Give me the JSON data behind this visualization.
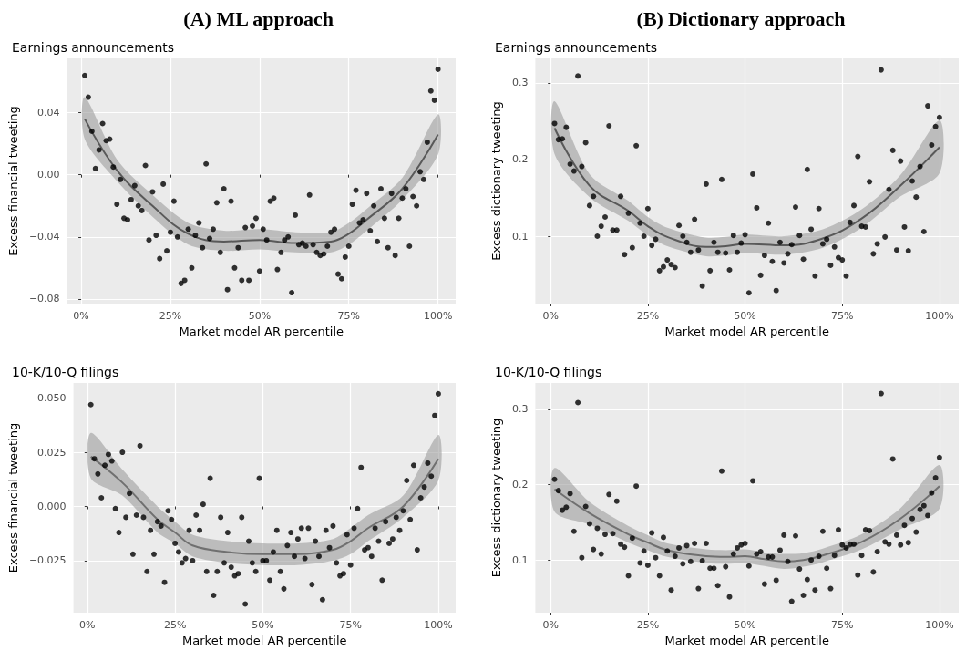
{
  "chart_data": [
    {
      "type": "scatter",
      "title": "Earnings announcements",
      "annotations": [
        "(A) ML approach"
      ],
      "xlabel": "Market model AR percentile",
      "ylabel": "Excess financial tweeting",
      "grid": true,
      "xlim": [
        -3.95,
        104.95
      ],
      "xticks": [
        {
          "value": 0,
          "label": "0%"
        },
        {
          "value": 25,
          "label": "25%"
        },
        {
          "value": 50,
          "label": "50%"
        },
        {
          "value": 75,
          "label": "75%"
        },
        {
          "value": 100,
          "label": "100%"
        }
      ],
      "ylim": [
        -0.083,
        0.075
      ],
      "yticks": [
        {
          "value": -0.08,
          "label": "−0.08"
        },
        {
          "value": -0.04,
          "label": "−0.04"
        },
        {
          "value": 0,
          "label": "0.00"
        },
        {
          "value": 0.04,
          "label": "0.04"
        }
      ],
      "x": [
        1,
        2,
        3,
        4,
        5,
        6,
        7,
        8,
        9,
        10,
        11,
        12,
        13,
        14,
        15,
        16,
        17,
        18,
        19,
        20,
        21,
        22,
        23,
        24,
        25,
        26,
        27,
        28,
        29,
        30,
        31,
        32,
        33,
        34,
        35,
        36,
        37,
        38,
        39,
        40,
        41,
        42,
        43,
        44,
        45,
        46,
        47,
        48,
        49,
        50,
        51,
        52,
        53,
        54,
        55,
        56,
        57,
        58,
        59,
        60,
        61,
        62,
        63,
        64,
        65,
        66,
        67,
        68,
        69,
        70,
        71,
        72,
        73,
        74,
        75,
        76,
        77,
        78,
        79,
        80,
        81,
        82,
        83,
        84,
        85,
        86,
        87,
        88,
        89,
        90,
        91,
        92,
        93,
        94,
        95,
        96,
        97,
        98,
        99,
        100
      ],
      "series": [
        {
          "color": "#000000",
          "marker": "circle",
          "values": [
            0.064,
            0.05,
            0.028,
            0.004,
            0.016,
            0.033,
            0.022,
            0.023,
            0.005,
            -0.019,
            -0.003,
            -0.028,
            -0.029,
            -0.016,
            -0.007,
            -0.02,
            -0.023,
            0.006,
            -0.042,
            -0.011,
            -0.039,
            -0.054,
            -0.006,
            -0.049,
            -0.037,
            -0.017,
            -0.04,
            -0.07,
            -0.068,
            -0.035,
            -0.06,
            -0.039,
            -0.031,
            -0.047,
            0.007,
            -0.041,
            -0.035,
            -0.018,
            -0.05,
            -0.009,
            -0.074,
            -0.017,
            -0.06,
            -0.047,
            -0.068,
            -0.034,
            -0.068,
            -0.033,
            -0.028,
            -0.062,
            -0.035,
            -0.042,
            -0.017,
            -0.015,
            -0.061,
            -0.05,
            -0.042,
            -0.04,
            -0.076,
            -0.026,
            -0.045,
            -0.044,
            -0.046,
            -0.013,
            -0.045,
            -0.05,
            -0.052,
            -0.051,
            -0.046,
            -0.037,
            -0.035,
            -0.064,
            -0.067,
            -0.053,
            -0.046,
            -0.019,
            -0.01,
            -0.031,
            -0.029,
            -0.012,
            -0.036,
            -0.02,
            -0.043,
            -0.009,
            -0.028,
            -0.047,
            -0.012,
            -0.052,
            -0.028,
            -0.015,
            -0.009,
            -0.046,
            -0.014,
            -0.02,
            0.002,
            -0.003,
            0.021,
            0.054,
            0.048,
            0.068
          ]
        },
        {
          "type": "line",
          "color": "#595959",
          "marker": "none",
          "x": [
            1,
            10,
            20,
            30,
            40,
            50,
            60,
            70,
            75,
            80,
            90,
            100
          ],
          "values": [
            0.036,
            0.003,
            -0.02,
            -0.038,
            -0.043,
            -0.042,
            -0.044,
            -0.043,
            -0.038,
            -0.029,
            -0.009,
            0.026
          ],
          "lower": [
            0.023,
            -0.004,
            -0.027,
            -0.045,
            -0.049,
            -0.048,
            -0.05,
            -0.05,
            -0.045,
            -0.036,
            -0.016,
            0.013
          ],
          "upper": [
            0.05,
            0.01,
            -0.013,
            -0.031,
            -0.036,
            -0.035,
            -0.037,
            -0.037,
            -0.031,
            -0.022,
            -0.002,
            0.039
          ]
        }
      ]
    },
    {
      "type": "scatter",
      "title": "Earnings announcements",
      "annotations": [
        "(B) Dictionary approach"
      ],
      "xlabel": "Market model AR percentile",
      "ylabel": "Excess dictionary tweeting",
      "grid": true,
      "xlim": [
        -3.95,
        104.95
      ],
      "xticks": [
        {
          "value": 0,
          "label": "0%"
        },
        {
          "value": 25,
          "label": "25%"
        },
        {
          "value": 50,
          "label": "50%"
        },
        {
          "value": 75,
          "label": "75%"
        },
        {
          "value": 100,
          "label": "100%"
        }
      ],
      "ylim": [
        0.012,
        0.332
      ],
      "yticks": [
        0.1,
        0.2,
        0.3
      ],
      "x": [
        1,
        2,
        3,
        4,
        5,
        6,
        7,
        8,
        9,
        10,
        11,
        12,
        13,
        14,
        15,
        16,
        17,
        18,
        19,
        20,
        21,
        22,
        23,
        24,
        25,
        26,
        27,
        28,
        29,
        30,
        31,
        32,
        33,
        34,
        35,
        36,
        37,
        38,
        39,
        40,
        41,
        42,
        43,
        44,
        45,
        46,
        47,
        48,
        49,
        50,
        51,
        52,
        53,
        54,
        55,
        56,
        57,
        58,
        59,
        60,
        61,
        62,
        63,
        64,
        65,
        66,
        67,
        68,
        69,
        70,
        71,
        72,
        73,
        74,
        75,
        76,
        77,
        78,
        79,
        80,
        81,
        82,
        83,
        84,
        85,
        86,
        87,
        88,
        89,
        90,
        91,
        92,
        93,
        94,
        95,
        96,
        97,
        98,
        99,
        100
      ],
      "series": [
        {
          "color": "#000000",
          "marker": "circle",
          "values": [
            0.247,
            0.226,
            0.227,
            0.242,
            0.194,
            0.185,
            0.309,
            0.191,
            0.222,
            0.14,
            0.152,
            0.1,
            0.113,
            0.125,
            0.244,
            0.108,
            0.108,
            0.152,
            0.076,
            0.13,
            0.085,
            0.218,
            0.117,
            0.1,
            0.136,
            0.088,
            0.096,
            0.055,
            0.06,
            0.069,
            0.063,
            0.059,
            0.114,
            0.1,
            0.092,
            0.079,
            0.122,
            0.082,
            0.035,
            0.168,
            0.055,
            0.092,
            0.079,
            0.174,
            0.078,
            0.056,
            0.101,
            0.079,
            0.091,
            0.102,
            0.026,
            0.181,
            0.137,
            0.049,
            0.075,
            0.117,
            0.067,
            0.029,
            0.092,
            0.065,
            0.077,
            0.089,
            0.138,
            0.101,
            0.07,
            0.187,
            0.109,
            0.048,
            0.136,
            0.09,
            0.096,
            0.062,
            0.086,
            0.072,
            0.069,
            0.048,
            0.118,
            0.14,
            0.204,
            0.113,
            0.112,
            0.171,
            0.077,
            0.09,
            0.317,
            0.099,
            0.161,
            0.212,
            0.082,
            0.198,
            0.112,
            0.081,
            0.172,
            0.151,
            0.191,
            0.106,
            0.27,
            0.219,
            0.243,
            0.255
          ]
        },
        {
          "type": "line",
          "color": "#595959",
          "marker": "none",
          "x": [
            1,
            10,
            20,
            25,
            30,
            40,
            45,
            50,
            60,
            70,
            80,
            90,
            100
          ],
          "values": [
            0.241,
            0.166,
            0.133,
            0.113,
            0.099,
            0.086,
            0.087,
            0.09,
            0.088,
            0.097,
            0.123,
            0.166,
            0.216
          ],
          "lower": [
            0.207,
            0.151,
            0.12,
            0.101,
            0.087,
            0.074,
            0.075,
            0.078,
            0.076,
            0.085,
            0.111,
            0.152,
            0.182
          ],
          "upper": [
            0.276,
            0.181,
            0.146,
            0.125,
            0.111,
            0.098,
            0.099,
            0.102,
            0.1,
            0.109,
            0.135,
            0.18,
            0.251
          ]
        }
      ]
    },
    {
      "type": "scatter",
      "title": "10-K/10-Q filings",
      "xlabel": "Market model AR percentile",
      "ylabel": "Excess financial tweeting",
      "grid": true,
      "xlim": [
        -3.95,
        104.95
      ],
      "xticks": [
        {
          "value": 0,
          "label": "0%"
        },
        {
          "value": 25,
          "label": "25%"
        },
        {
          "value": 50,
          "label": "50%"
        },
        {
          "value": 75,
          "label": "75%"
        },
        {
          "value": 100,
          "label": "100%"
        }
      ],
      "ylim": [
        -0.049,
        0.057
      ],
      "yticks": [
        {
          "value": -0.025,
          "label": "−0.025"
        },
        {
          "value": 0,
          "label": "0.000"
        },
        {
          "value": 0.025,
          "label": "0.025"
        },
        {
          "value": 0.05,
          "label": "0.050"
        }
      ],
      "x": [
        1,
        2,
        3,
        4,
        5,
        6,
        7,
        8,
        9,
        10,
        11,
        12,
        13,
        14,
        15,
        16,
        17,
        18,
        19,
        20,
        21,
        22,
        23,
        24,
        25,
        26,
        27,
        28,
        29,
        30,
        31,
        32,
        33,
        34,
        35,
        36,
        37,
        38,
        39,
        40,
        41,
        42,
        43,
        44,
        45,
        46,
        47,
        48,
        49,
        50,
        51,
        52,
        53,
        54,
        55,
        56,
        57,
        58,
        59,
        60,
        61,
        62,
        63,
        64,
        65,
        66,
        67,
        68,
        69,
        70,
        71,
        72,
        73,
        74,
        75,
        76,
        77,
        78,
        79,
        80,
        81,
        82,
        83,
        84,
        85,
        86,
        87,
        88,
        89,
        90,
        91,
        92,
        93,
        94,
        95,
        96,
        97,
        98,
        99,
        100
      ],
      "series": [
        {
          "color": "#000000",
          "marker": "circle",
          "values": [
            0.047,
            0.022,
            0.015,
            0.004,
            0.019,
            0.024,
            0.021,
            -0.001,
            -0.012,
            0.025,
            -0.005,
            0.006,
            -0.022,
            -0.004,
            0.028,
            -0.005,
            -0.03,
            -0.011,
            -0.022,
            -0.007,
            -0.009,
            -0.035,
            -0.002,
            -0.006,
            -0.017,
            -0.021,
            -0.026,
            -0.024,
            -0.011,
            -0.025,
            -0.004,
            -0.011,
            0.001,
            -0.03,
            0.013,
            -0.041,
            -0.03,
            -0.005,
            -0.026,
            -0.012,
            -0.028,
            -0.032,
            -0.031,
            -0.005,
            -0.045,
            -0.016,
            -0.026,
            -0.03,
            0.013,
            -0.025,
            -0.025,
            -0.034,
            -0.021,
            -0.011,
            -0.03,
            -0.038,
            -0.018,
            -0.012,
            -0.023,
            -0.015,
            -0.01,
            -0.024,
            -0.01,
            -0.036,
            -0.016,
            -0.023,
            -0.043,
            -0.011,
            -0.019,
            -0.009,
            -0.026,
            -0.032,
            -0.031,
            -0.013,
            -0.027,
            -0.01,
            -0.001,
            0.018,
            -0.02,
            -0.019,
            -0.023,
            -0.01,
            -0.016,
            -0.034,
            -0.007,
            -0.017,
            -0.015,
            -0.005,
            -0.011,
            -0.002,
            0.012,
            -0.006,
            0.019,
            -0.02,
            0.004,
            0.009,
            0.02,
            0.014,
            0.042,
            0.052
          ]
        },
        {
          "type": "line",
          "color": "#707070",
          "marker": "none",
          "x": [
            1,
            10,
            20,
            25,
            30,
            40,
            50,
            60,
            70,
            75,
            80,
            90,
            100
          ],
          "values": [
            0.023,
            0.011,
            -0.006,
            -0.012,
            -0.018,
            -0.021,
            -0.022,
            -0.022,
            -0.02,
            -0.016,
            -0.01,
            0.0,
            0.022
          ],
          "lower": [
            0.013,
            0.005,
            -0.012,
            -0.017,
            -0.023,
            -0.026,
            -0.027,
            -0.027,
            -0.025,
            -0.022,
            -0.016,
            -0.005,
            0.012
          ],
          "upper": [
            0.034,
            0.017,
            0.0,
            -0.007,
            -0.013,
            -0.016,
            -0.017,
            -0.017,
            -0.015,
            -0.01,
            -0.004,
            0.005,
            0.033
          ]
        }
      ]
    },
    {
      "type": "scatter",
      "title": "10-K/10-Q filings",
      "xlabel": "Market model AR percentile",
      "ylabel": "Excess dictionary tweeting",
      "grid": true,
      "xlim": [
        -3.95,
        104.95
      ],
      "xticks": [
        {
          "value": 0,
          "label": "0%"
        },
        {
          "value": 25,
          "label": "25%"
        },
        {
          "value": 50,
          "label": "50%"
        },
        {
          "value": 75,
          "label": "75%"
        },
        {
          "value": 100,
          "label": "100%"
        }
      ],
      "ylim": [
        0.03,
        0.335
      ],
      "yticks": [
        0.1,
        0.2,
        0.3
      ],
      "x": [
        1,
        2,
        3,
        4,
        5,
        6,
        7,
        8,
        9,
        10,
        11,
        12,
        13,
        14,
        15,
        16,
        17,
        18,
        19,
        20,
        21,
        22,
        23,
        24,
        25,
        26,
        27,
        28,
        29,
        30,
        31,
        32,
        33,
        34,
        35,
        36,
        37,
        38,
        39,
        40,
        41,
        42,
        43,
        44,
        45,
        46,
        47,
        48,
        49,
        50,
        51,
        52,
        53,
        54,
        55,
        56,
        57,
        58,
        59,
        60,
        61,
        62,
        63,
        64,
        65,
        66,
        67,
        68,
        69,
        70,
        71,
        72,
        73,
        74,
        75,
        76,
        77,
        78,
        79,
        80,
        81,
        82,
        83,
        84,
        85,
        86,
        87,
        88,
        89,
        90,
        91,
        92,
        93,
        94,
        95,
        96,
        97,
        98,
        99,
        100
      ],
      "series": [
        {
          "color": "#000000",
          "marker": "circle",
          "values": [
            0.207,
            0.192,
            0.166,
            0.17,
            0.188,
            0.138,
            0.309,
            0.103,
            0.171,
            0.148,
            0.114,
            0.142,
            0.108,
            0.134,
            0.187,
            0.135,
            0.178,
            0.121,
            0.117,
            0.079,
            0.129,
            0.198,
            0.096,
            0.112,
            0.093,
            0.136,
            0.103,
            0.079,
            0.13,
            0.112,
            0.06,
            0.105,
            0.116,
            0.095,
            0.119,
            0.098,
            0.122,
            0.062,
            0.099,
            0.122,
            0.089,
            0.089,
            0.066,
            0.218,
            0.091,
            0.051,
            0.108,
            0.116,
            0.12,
            0.122,
            0.092,
            0.205,
            0.108,
            0.111,
            0.068,
            0.104,
            0.104,
            0.073,
            0.113,
            0.133,
            0.098,
            0.045,
            0.132,
            0.088,
            0.053,
            0.074,
            0.1,
            0.06,
            0.105,
            0.138,
            0.089,
            0.062,
            0.106,
            0.14,
            0.12,
            0.116,
            0.121,
            0.121,
            0.08,
            0.106,
            0.14,
            0.139,
            0.084,
            0.111,
            0.321,
            0.124,
            0.121,
            0.234,
            0.133,
            0.12,
            0.146,
            0.123,
            0.155,
            0.137,
            0.167,
            0.172,
            0.159,
            0.189,
            0.209,
            0.236
          ]
        },
        {
          "type": "line",
          "color": "#707070",
          "marker": "none",
          "x": [
            1,
            10,
            20,
            25,
            30,
            40,
            45,
            50,
            55,
            60,
            65,
            70,
            80,
            90,
            100
          ],
          "values": [
            0.194,
            0.162,
            0.134,
            0.123,
            0.113,
            0.105,
            0.104,
            0.105,
            0.101,
            0.098,
            0.1,
            0.106,
            0.124,
            0.155,
            0.198
          ],
          "lower": [
            0.164,
            0.147,
            0.123,
            0.113,
            0.104,
            0.096,
            0.095,
            0.096,
            0.092,
            0.088,
            0.091,
            0.097,
            0.114,
            0.141,
            0.168
          ],
          "upper": [
            0.222,
            0.177,
            0.145,
            0.133,
            0.122,
            0.114,
            0.113,
            0.114,
            0.11,
            0.108,
            0.109,
            0.115,
            0.134,
            0.169,
            0.226
          ]
        }
      ]
    }
  ]
}
